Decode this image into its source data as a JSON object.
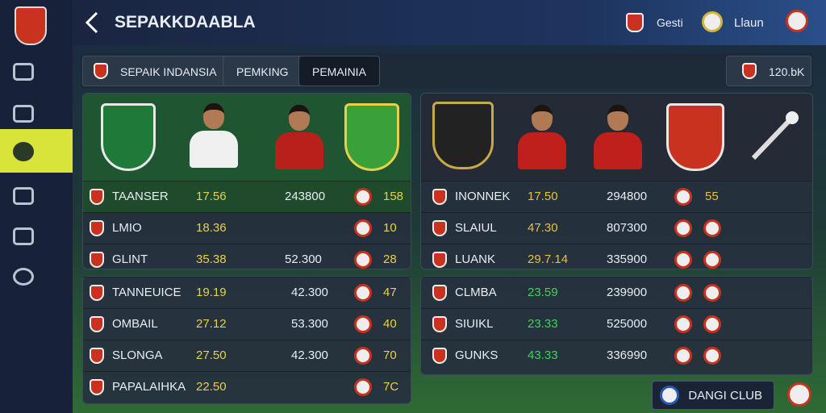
{
  "header": {
    "title": "SEPAKKDAABLA",
    "badges": [
      "Gesti",
      "Llaun"
    ]
  },
  "tabs": [
    "SEPAIK INDANSIA",
    "PEMKING",
    "PEMAINIA"
  ],
  "coins": "120.bK",
  "panels": [
    {
      "rows": [
        {
          "name": "TAANSER",
          "rating": "17.56",
          "value": "243800",
          "score": "158"
        },
        {
          "name": "LMIO",
          "rating": "18.36",
          "score": "10"
        },
        {
          "name": "GLINT",
          "rating": "35.38",
          "value": "52.300",
          "score": "28"
        }
      ]
    },
    {
      "rows": [
        {
          "name": "INONNEK",
          "rating": "17.50",
          "value": "294800",
          "score": "55"
        },
        {
          "name": "SLAIUL",
          "rating": "47.30",
          "value": "807300"
        },
        {
          "name": "LUANK",
          "rating": "29.7.14",
          "value": "335900"
        }
      ]
    },
    {
      "rows": [
        {
          "name": "TANNEUICE",
          "rating": "19.19",
          "value": "42.300",
          "score": "47"
        },
        {
          "name": "OMBAIL",
          "rating": "27.12",
          "value": "53.300",
          "score": "40"
        },
        {
          "name": "SLONGA",
          "rating": "27.50",
          "value": "42.300",
          "score": "70"
        },
        {
          "name": "PAPALAIHKA",
          "rating": "22.50",
          "score": "7C"
        }
      ]
    },
    {
      "rows": [
        {
          "name": "CLMBA",
          "rating": "23.59",
          "value": "239900"
        },
        {
          "name": "SIUIKL",
          "rating": "23.33",
          "value": "525000"
        },
        {
          "name": "GUNKS",
          "rating": "43.33",
          "value": "336990"
        }
      ]
    }
  ],
  "button": "DANGI CLUB"
}
